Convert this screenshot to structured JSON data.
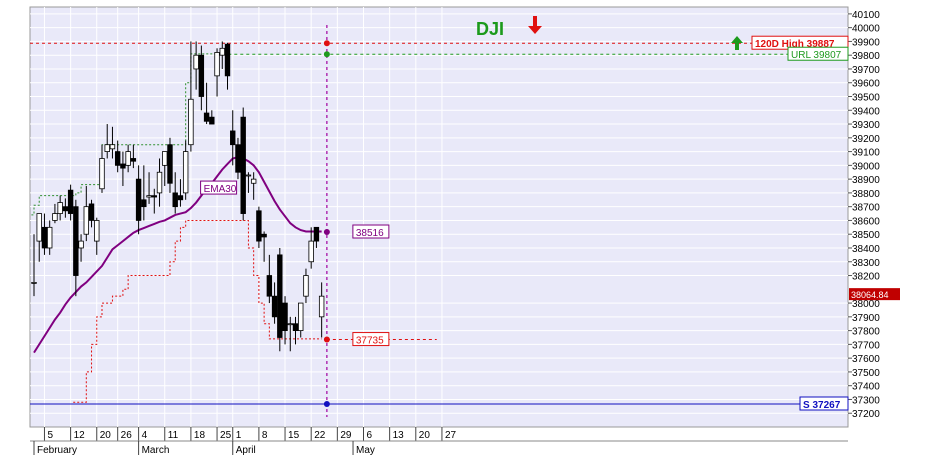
{
  "chart_data": {
    "type": "candlestick",
    "title": "DJI",
    "colors": {
      "plot_bg": "#e9e9f9",
      "ema": "#800080",
      "upper_trail": "#2f8f2f",
      "lower_trail": "#e01010",
      "high_line": "#e01010",
      "url_line": "#1e9a1e",
      "support_line": "#1010c0",
      "vertical_marker": "#a000a0",
      "title": "#1c9a1c",
      "down_arrow": "#e01010",
      "up_arrow": "#1c9a1c"
    },
    "y_axis": {
      "min": 37100,
      "max": 40150,
      "ticks": [
        37200,
        37300,
        37400,
        37500,
        37600,
        37700,
        37800,
        37900,
        38000,
        38200,
        38300,
        38400,
        38500,
        38600,
        38700,
        38800,
        38900,
        39000,
        39100,
        39200,
        39300,
        39400,
        39500,
        39600,
        39700,
        39800,
        39900,
        40000,
        40100
      ]
    },
    "x_axis": {
      "day_ticks": [
        {
          "i": 2,
          "label": "5"
        },
        {
          "i": 7,
          "label": "12"
        },
        {
          "i": 12,
          "label": "20"
        },
        {
          "i": 16,
          "label": "26"
        },
        {
          "i": 20,
          "label": "4"
        },
        {
          "i": 25,
          "label": "11"
        },
        {
          "i": 30,
          "label": "18"
        },
        {
          "i": 35,
          "label": "25"
        },
        {
          "i": 38,
          "label": "1"
        },
        {
          "i": 43,
          "label": "8"
        },
        {
          "i": 48,
          "label": "15"
        },
        {
          "i": 53,
          "label": "22"
        },
        {
          "i": 58,
          "label": "29"
        },
        {
          "i": 63,
          "label": "6"
        },
        {
          "i": 68,
          "label": "13"
        },
        {
          "i": 73,
          "label": "20"
        },
        {
          "i": 78,
          "label": "27"
        }
      ],
      "month_ticks": [
        {
          "i": 0,
          "label": "February"
        },
        {
          "i": 20,
          "label": "March"
        },
        {
          "i": 38,
          "label": "April"
        },
        {
          "i": 61,
          "label": "May"
        }
      ],
      "last_index": 80
    },
    "candles": [
      {
        "o": 38150,
        "h": 38500,
        "l": 38050,
        "c": 38150
      },
      {
        "o": 38450,
        "h": 38650,
        "l": 38300,
        "c": 38650
      },
      {
        "o": 38550,
        "h": 38650,
        "l": 38350,
        "c": 38400
      },
      {
        "o": 38400,
        "h": 38600,
        "l": 38350,
        "c": 38550
      },
      {
        "o": 38600,
        "h": 38720,
        "l": 38580,
        "c": 38650
      },
      {
        "o": 38650,
        "h": 38780,
        "l": 38600,
        "c": 38730
      },
      {
        "o": 38700,
        "h": 38760,
        "l": 38620,
        "c": 38670
      },
      {
        "o": 38820,
        "h": 38860,
        "l": 38600,
        "c": 38650
      },
      {
        "o": 38700,
        "h": 38750,
        "l": 38050,
        "c": 38200
      },
      {
        "o": 38400,
        "h": 38500,
        "l": 38300,
        "c": 38450
      },
      {
        "o": 38500,
        "h": 38850,
        "l": 38450,
        "c": 38700
      },
      {
        "o": 38720,
        "h": 38750,
        "l": 38550,
        "c": 38600
      },
      {
        "o": 38450,
        "h": 38620,
        "l": 38350,
        "c": 38600
      },
      {
        "o": 38830,
        "h": 39150,
        "l": 38800,
        "c": 39050
      },
      {
        "o": 39100,
        "h": 39300,
        "l": 39050,
        "c": 39150
      },
      {
        "o": 39120,
        "h": 39280,
        "l": 39050,
        "c": 39150
      },
      {
        "o": 39100,
        "h": 39180,
        "l": 38950,
        "c": 39000
      },
      {
        "o": 39010,
        "h": 39100,
        "l": 38850,
        "c": 38980
      },
      {
        "o": 39000,
        "h": 39150,
        "l": 38950,
        "c": 39100
      },
      {
        "o": 39050,
        "h": 39150,
        "l": 38980,
        "c": 39030
      },
      {
        "o": 38900,
        "h": 39000,
        "l": 38500,
        "c": 38600
      },
      {
        "o": 38750,
        "h": 39000,
        "l": 38600,
        "c": 38700
      },
      {
        "o": 38770,
        "h": 38950,
        "l": 38720,
        "c": 38780
      },
      {
        "o": 38780,
        "h": 38830,
        "l": 38650,
        "c": 38770
      },
      {
        "o": 38800,
        "h": 39050,
        "l": 38700,
        "c": 38950
      },
      {
        "o": 39000,
        "h": 39100,
        "l": 38850,
        "c": 39100
      },
      {
        "o": 39150,
        "h": 39200,
        "l": 38800,
        "c": 38870
      },
      {
        "o": 38800,
        "h": 38950,
        "l": 38650,
        "c": 38700
      },
      {
        "o": 38780,
        "h": 38900,
        "l": 38700,
        "c": 38750
      },
      {
        "o": 38800,
        "h": 39180,
        "l": 38750,
        "c": 39100
      },
      {
        "o": 39150,
        "h": 39900,
        "l": 39100,
        "c": 39480
      },
      {
        "o": 39700,
        "h": 39900,
        "l": 39550,
        "c": 39800
      },
      {
        "o": 39800,
        "h": 39870,
        "l": 39400,
        "c": 39500
      },
      {
        "o": 39380,
        "h": 39600,
        "l": 39300,
        "c": 39320
      },
      {
        "o": 39350,
        "h": 39400,
        "l": 39300,
        "c": 39300
      },
      {
        "o": 39650,
        "h": 39850,
        "l": 39500,
        "c": 39820
      },
      {
        "o": 39800,
        "h": 39900,
        "l": 39700,
        "c": 39850
      },
      {
        "o": 39880,
        "h": 39890,
        "l": 39550,
        "c": 39650
      },
      {
        "o": 39250,
        "h": 39400,
        "l": 39000,
        "c": 39150
      },
      {
        "o": 39150,
        "h": 39200,
        "l": 38900,
        "c": 38950
      },
      {
        "o": 39350,
        "h": 39420,
        "l": 38600,
        "c": 38650
      },
      {
        "o": 38930,
        "h": 38950,
        "l": 38800,
        "c": 38930
      },
      {
        "o": 38870,
        "h": 38950,
        "l": 38750,
        "c": 38900
      },
      {
        "o": 38670,
        "h": 38700,
        "l": 38400,
        "c": 38450
      },
      {
        "o": 38500,
        "h": 38520,
        "l": 38300,
        "c": 38480
      },
      {
        "o": 38200,
        "h": 38350,
        "l": 38000,
        "c": 38050
      },
      {
        "o": 38050,
        "h": 38150,
        "l": 37850,
        "c": 37900
      },
      {
        "o": 38350,
        "h": 38400,
        "l": 37650,
        "c": 37750
      },
      {
        "o": 38000,
        "h": 38050,
        "l": 37700,
        "c": 37800
      },
      {
        "o": 37850,
        "h": 37900,
        "l": 37650,
        "c": 37850
      },
      {
        "o": 37850,
        "h": 37900,
        "l": 37700,
        "c": 37800
      },
      {
        "o": 37800,
        "h": 38000,
        "l": 37750,
        "c": 38000
      },
      {
        "o": 38050,
        "h": 38250,
        "l": 38000,
        "c": 38200
      },
      {
        "o": 38300,
        "h": 38550,
        "l": 38250,
        "c": 38450
      },
      {
        "o": 38550,
        "h": 38550,
        "l": 38400,
        "c": 38450
      },
      {
        "o": 37900,
        "h": 38150,
        "l": 37750,
        "c": 38050
      }
    ],
    "ema30": [
      37640,
      37700,
      37760,
      37820,
      37880,
      37930,
      37990,
      38040,
      38080,
      38120,
      38150,
      38190,
      38230,
      38270,
      38330,
      38390,
      38420,
      38450,
      38480,
      38510,
      38530,
      38545,
      38560,
      38575,
      38590,
      38600,
      38620,
      38640,
      38650,
      38660,
      38690,
      38730,
      38780,
      38830,
      38870,
      38920,
      38970,
      39010,
      39050,
      39060,
      39050,
      39030,
      39000,
      38950,
      38880,
      38810,
      38740,
      38680,
      38630,
      38580,
      38550,
      38530,
      38520,
      38520,
      38520,
      38520
    ],
    "upper_trail": [
      38640,
      38710,
      38780,
      38780,
      38780,
      38780,
      38780,
      38780,
      38780,
      38800,
      38860,
      38860,
      38860,
      38860,
      39150,
      39150,
      39150,
      39150,
      39150,
      39150,
      39150,
      39150,
      39150,
      39150,
      39150,
      39150,
      39150,
      39150,
      39150,
      39150,
      39600,
      39810,
      39810,
      39810,
      39810,
      39810,
      39810,
      39810
    ],
    "lower_trail": [
      null,
      null,
      null,
      null,
      null,
      null,
      null,
      null,
      37280,
      37280,
      37280,
      37500,
      37700,
      37900,
      38000,
      38000,
      38050,
      38050,
      38100,
      38200,
      38200,
      38200,
      38200,
      38200,
      38200,
      38200,
      38200,
      38300,
      38450,
      38550,
      38600,
      38600,
      38600,
      38600,
      38600,
      38600,
      38600,
      38600,
      38600,
      38600,
      38600,
      38600,
      38400,
      38200,
      38000,
      37850,
      37740,
      37740,
      37740,
      37740,
      37740,
      37740,
      37740,
      37740,
      37740,
      37740
    ],
    "levels": {
      "high_120d": 39887,
      "url": 39807,
      "ema_value": 38516,
      "stop": 37735,
      "support": 37267,
      "last_price": 38064.84
    },
    "vertical_marker_index": 56,
    "labels": {
      "title": "DJI",
      "high_label": "120D High 39887",
      "url_label": "URL 39807",
      "ema_name": "EMA30",
      "ema_label": "38516",
      "stop_label": "37735",
      "support_label": "S 37267",
      "last_price_label": "38064.84"
    }
  }
}
